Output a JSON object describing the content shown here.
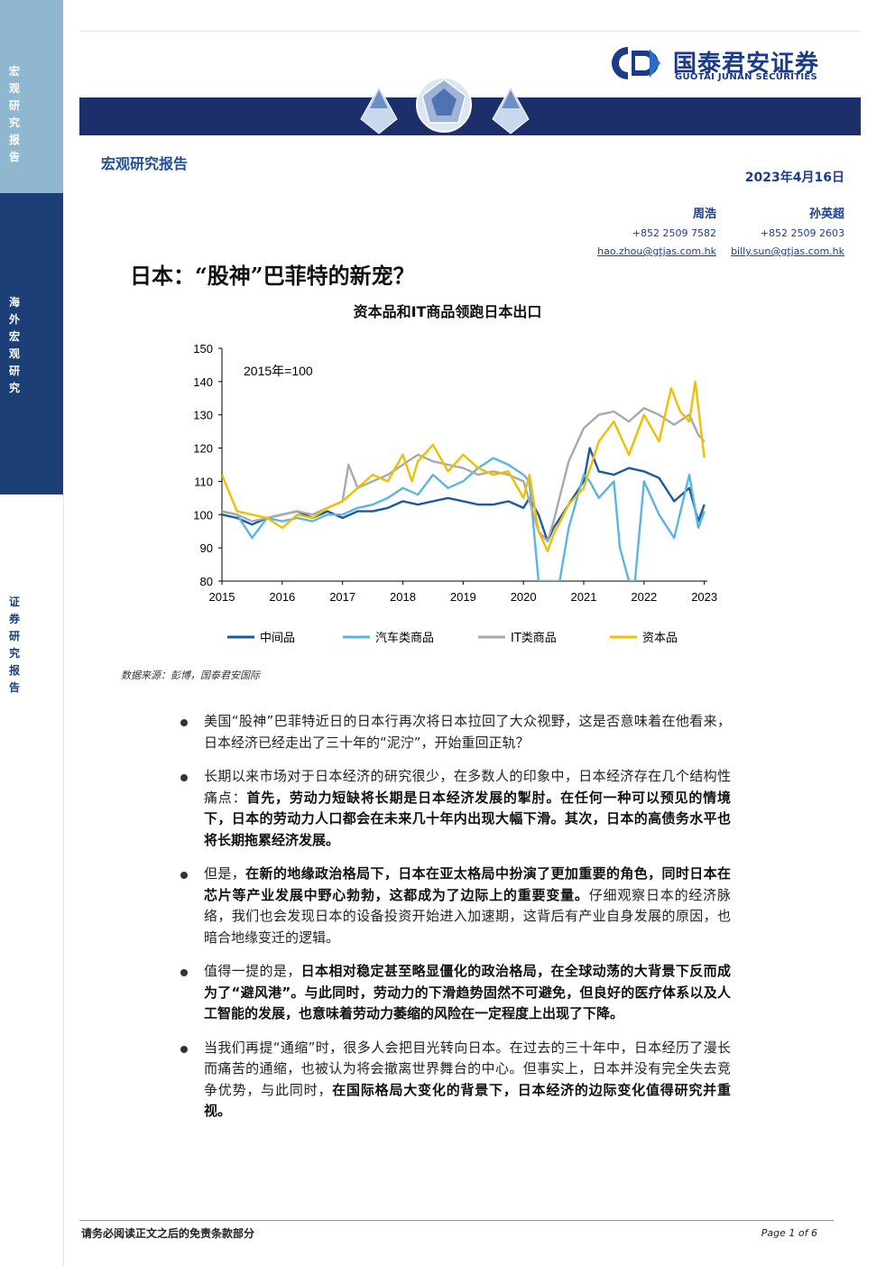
{
  "sidebar": {
    "segments": [
      {
        "text": "宏观研究报告",
        "bg": "#8fb7cf",
        "color": "#ffffff"
      },
      {
        "text": "海外宏观研究",
        "bg": "#1c3f78",
        "color": "#ffffff"
      },
      {
        "text": "证券研究报告",
        "bg": "#ffffff",
        "color": "#1c3f78"
      }
    ]
  },
  "header": {
    "logo_cn": "国泰君安证券",
    "logo_en": "GUOTAI JUNAN SECURITIES",
    "report_type": "宏观研究报告",
    "date": "2023年4月16日"
  },
  "authors": [
    {
      "name": "周浩",
      "phone": "+852 2509 7582",
      "email": "hao.zhou@gtjas.com.hk"
    },
    {
      "name": "孙英超",
      "phone": "+852 2509 2603",
      "email": "billy.sun@gtjas.com.hk"
    }
  ],
  "title": "日本：“股神”巴菲特的新宠？",
  "chart_data": {
    "type": "line",
    "title": "资本品和IT商品领跑日本出口",
    "annotation": "2015年=100",
    "xlim": [
      2015,
      2023.05
    ],
    "ylim": [
      80,
      150
    ],
    "yticks": [
      80,
      90,
      100,
      110,
      120,
      130,
      140,
      150
    ],
    "xticks": [
      2015,
      2016,
      2017,
      2018,
      2019,
      2020,
      2021,
      2022,
      2023
    ],
    "xtick_labels": [
      "2015",
      "2016",
      "2017",
      "2018",
      "2019",
      "2020",
      "2021",
      "2022",
      "2023"
    ],
    "grid": false,
    "legend_position": "bottom",
    "series": [
      {
        "name": "中间品",
        "color": "#1a5a9e",
        "x": [
          2015,
          2015.25,
          2015.5,
          2015.75,
          2016,
          2016.25,
          2016.5,
          2016.75,
          2017,
          2017.25,
          2017.5,
          2017.75,
          2018,
          2018.25,
          2018.5,
          2018.75,
          2019,
          2019.25,
          2019.5,
          2019.75,
          2020,
          2020.1,
          2020.25,
          2020.4,
          2020.5,
          2020.75,
          2021,
          2021.1,
          2021.25,
          2021.5,
          2021.75,
          2022,
          2022.25,
          2022.5,
          2022.75,
          2022.9,
          2023
        ],
        "y": [
          100,
          99,
          97,
          99,
          100,
          101,
          99,
          101,
          99,
          101,
          101,
          102,
          104,
          103,
          104,
          105,
          104,
          103,
          103,
          104,
          102,
          105,
          100,
          92,
          96,
          103,
          110,
          120,
          113,
          112,
          114,
          113,
          111,
          104,
          108,
          98,
          103
        ]
      },
      {
        "name": "汽车类商品",
        "color": "#59b6e3",
        "x": [
          2015,
          2015.25,
          2015.5,
          2015.75,
          2016,
          2016.25,
          2016.5,
          2016.75,
          2017,
          2017.25,
          2017.5,
          2017.75,
          2018,
          2018.25,
          2018.5,
          2018.75,
          2019,
          2019.25,
          2019.5,
          2019.75,
          2020,
          2020.1,
          2020.25,
          2020.35,
          2020.5,
          2020.6,
          2020.75,
          2021,
          2021.1,
          2021.25,
          2021.5,
          2021.6,
          2021.75,
          2021.85,
          2022,
          2022.25,
          2022.5,
          2022.75,
          2022.9,
          2023
        ],
        "y": [
          101,
          100,
          93,
          99,
          98,
          99,
          98,
          100,
          100,
          102,
          103,
          105,
          108,
          106,
          112,
          108,
          110,
          114,
          117,
          115,
          112,
          110,
          80,
          80,
          80,
          80,
          96,
          112,
          110,
          105,
          110,
          90,
          80,
          80,
          110,
          100,
          93,
          112,
          96,
          101
        ]
      },
      {
        "name": "IT类商品",
        "color": "#a9a9a9",
        "x": [
          2015,
          2015.25,
          2015.5,
          2015.75,
          2016,
          2016.25,
          2016.5,
          2016.75,
          2017,
          2017.1,
          2017.25,
          2017.5,
          2017.75,
          2018,
          2018.25,
          2018.5,
          2018.75,
          2019,
          2019.25,
          2019.5,
          2019.75,
          2020,
          2020.25,
          2020.4,
          2020.5,
          2020.75,
          2021,
          2021.25,
          2021.5,
          2021.75,
          2022,
          2022.25,
          2022.5,
          2022.75,
          2022.9,
          2023
        ],
        "y": [
          101,
          100,
          98,
          99,
          100,
          101,
          100,
          102,
          104,
          115,
          108,
          110,
          112,
          115,
          118,
          116,
          115,
          114,
          112,
          113,
          112,
          110,
          95,
          92,
          98,
          116,
          126,
          130,
          131,
          128,
          132,
          130,
          127,
          130,
          124,
          122
        ]
      },
      {
        "name": "资本品",
        "color": "#f2be00",
        "x": [
          2015,
          2015.25,
          2015.5,
          2015.75,
          2016,
          2016.25,
          2016.5,
          2016.75,
          2017,
          2017.25,
          2017.5,
          2017.75,
          2018,
          2018.15,
          2018.25,
          2018.5,
          2018.75,
          2019,
          2019.25,
          2019.5,
          2019.75,
          2020,
          2020.1,
          2020.25,
          2020.4,
          2020.5,
          2020.75,
          2021,
          2021.25,
          2021.5,
          2021.75,
          2022,
          2022.25,
          2022.45,
          2022.6,
          2022.75,
          2022.85,
          2023
        ],
        "y": [
          112,
          101,
          100,
          99,
          96,
          100,
          99,
          102,
          104,
          108,
          112,
          110,
          118,
          110,
          116,
          121,
          113,
          118,
          114,
          112,
          113,
          105,
          112,
          95,
          89,
          94,
          103,
          108,
          122,
          128,
          118,
          130,
          122,
          138,
          131,
          128,
          140,
          117
        ]
      }
    ]
  },
  "source": "数据来源：彭博，国泰君安国际",
  "bullets": [
    {
      "parts": [
        {
          "text": "美国“股神”巴菲特近日的日本行再次将日本拉回了大众视野，这是否意味着在他看来，日本经济已经走出了三十年的“泥泞”，开始重回正轨？",
          "bold": false
        }
      ]
    },
    {
      "parts": [
        {
          "text": "长期以来市场对于日本经济的研究很少，在多数人的印象中，日本经济存在几个结构性痛点：",
          "bold": false
        },
        {
          "text": "首先，劳动力短缺将长期是日本经济发展的掣肘。在任何一种可以预见的情境下，日本的劳动力人口都会在未来几十年内出现大幅下滑。其次，日本的高债务水平也将长期拖累经济发展。",
          "bold": true
        }
      ]
    },
    {
      "parts": [
        {
          "text": "但是，",
          "bold": false
        },
        {
          "text": "在新的地缘政治格局下，日本在亚太格局中扮演了更加重要的角色，同时日本在芯片等产业发展中野心勃勃，这都成为了边际上的重要变量。",
          "bold": true
        },
        {
          "text": "仔细观察日本的经济脉络，我们也会发现日本的设备投资开始进入加速期，这背后有产业自身发展的原因，也暗合地缘变迁的逻辑。",
          "bold": false
        }
      ]
    },
    {
      "parts": [
        {
          "text": "值得一提的是，",
          "bold": false
        },
        {
          "text": "日本相对稳定甚至略显僵化的政治格局，在全球动荡的大背景下反而成为了“避风港”。与此同时，劳动力的下滑趋势固然不可避免，但良好的医疗体系以及人工智能的发展，也意味着劳动力萎缩的风险在一定程度上出现了下降。",
          "bold": true
        }
      ]
    },
    {
      "parts": [
        {
          "text": "当我们再提“通缩”时，很多人会把目光转向日本。在过去的三十年中，日本经历了漫长而痛苦的通缩，也被认为将会撤离世界舞台的中心。但事实上，日本并没有完全失去竞争优势，与此同时，",
          "bold": false
        },
        {
          "text": "在国际格局大变化的背景下，日本经济的边际变化值得研究并重视。",
          "bold": true
        }
      ]
    }
  ],
  "footer": {
    "disclaimer": "请务必阅读正文之后的免责条款部分",
    "page": "Page 1 of 6"
  },
  "colors": {
    "navy": "#1c2f6b",
    "brand_blue": "#1a3a8a",
    "light_blue": "#8fb7cf"
  }
}
